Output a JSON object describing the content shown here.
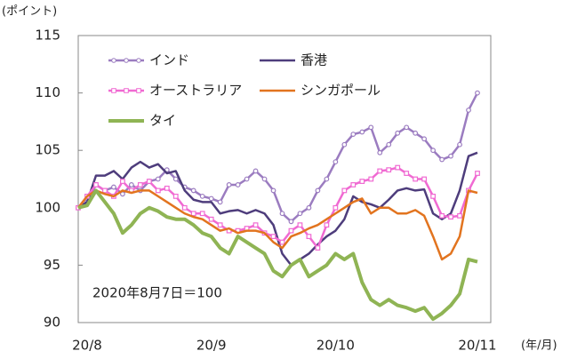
{
  "chart_data": {
    "type": "line",
    "y_label": "(ポイント)",
    "x_label": "(年/月)",
    "annotation": "2020年8月7日＝100",
    "categories": [
      null,
      "20/8",
      null,
      null,
      null,
      null,
      null,
      null,
      null,
      null,
      null,
      null,
      null,
      null,
      null,
      "20/9",
      null,
      null,
      null,
      null,
      null,
      null,
      null,
      null,
      null,
      null,
      null,
      null,
      null,
      "20/10",
      null,
      null,
      null,
      null,
      null,
      null,
      null,
      null,
      null,
      null,
      null,
      null,
      null,
      null,
      null,
      "20/11"
    ],
    "ylim": [
      90,
      115
    ],
    "yticks": [
      90,
      95,
      100,
      105,
      110,
      115
    ],
    "legend": "top-left",
    "series": [
      {
        "name": "インド",
        "color": "#9b7cc0",
        "marker": "circle",
        "values": [
          100,
          100.5,
          102,
          101.5,
          101.8,
          101.2,
          102,
          101.5,
          102.3,
          102.5,
          103.3,
          102.5,
          101.8,
          101.5,
          101,
          100.8,
          100.5,
          102,
          102,
          102.5,
          103.2,
          102.5,
          101.5,
          99.5,
          98.8,
          99.5,
          100,
          101.5,
          102.5,
          104,
          105.5,
          106.4,
          106.6,
          107,
          104.8,
          105.5,
          106.5,
          107,
          106.5,
          106,
          105,
          104.2,
          104.5,
          105.5,
          108.5,
          110
        ]
      },
      {
        "name": "香港",
        "color": "#4e3d7c",
        "values": [
          100,
          100.5,
          102.8,
          102.8,
          103.2,
          102.5,
          103.5,
          104,
          103.5,
          103.8,
          103,
          103.2,
          101.5,
          100.7,
          100.5,
          100.5,
          99.5,
          99.7,
          99.8,
          99.5,
          99.8,
          99.5,
          98.5,
          96,
          95,
          95.5,
          96,
          96.8,
          97.5,
          98,
          99,
          101,
          100.5,
          100.3,
          100,
          100.7,
          101.5,
          101.7,
          101.5,
          101.6,
          99.5,
          99,
          99.5,
          101.5,
          104.5,
          104.8
        ]
      },
      {
        "name": "オーストラリア",
        "color": "#f06ad2",
        "marker": "square",
        "values": [
          100,
          101,
          102,
          101.5,
          101,
          102.3,
          101.5,
          102,
          102.3,
          101.5,
          101.7,
          101,
          100,
          99.5,
          99.5,
          99,
          98.5,
          98,
          98,
          98.2,
          98.5,
          97.8,
          97.5,
          97,
          98,
          98.5,
          97.5,
          96.5,
          98.5,
          100,
          101.5,
          102,
          102.3,
          102.5,
          103.2,
          103.3,
          103.5,
          103,
          102.5,
          102.5,
          101,
          99.3,
          99.2,
          99.3,
          101.5,
          103
        ]
      },
      {
        "name": "シンガポール",
        "color": "#e2741f",
        "values": [
          100,
          101,
          101.5,
          101.2,
          101,
          101.5,
          101.3,
          101.5,
          101.5,
          101,
          100.5,
          100,
          99.5,
          99.2,
          99,
          98.5,
          98,
          98.2,
          97.8,
          98,
          98,
          97.8,
          97,
          96.5,
          97.5,
          97.8,
          98.2,
          98.5,
          99,
          99.5,
          100,
          100.5,
          100.8,
          99.5,
          100,
          100,
          99.5,
          99.5,
          99.8,
          99.3,
          97.5,
          95.5,
          96,
          97.5,
          101.5,
          101.3
        ]
      },
      {
        "name": "タイ",
        "color": "#8fb454",
        "width": 4,
        "values": [
          100,
          100.2,
          101.5,
          100.5,
          99.5,
          97.8,
          98.5,
          99.5,
          100,
          99.7,
          99.2,
          99,
          99,
          98.5,
          97.8,
          97.5,
          96.5,
          96,
          97.5,
          97,
          96.5,
          96,
          94.5,
          94,
          95,
          95.5,
          94,
          94.5,
          95,
          96,
          95.5,
          96,
          93.5,
          92,
          91.5,
          92,
          91.5,
          91.3,
          91,
          91.3,
          90.3,
          90.8,
          91.5,
          92.5,
          95.5,
          95.3
        ]
      }
    ]
  }
}
